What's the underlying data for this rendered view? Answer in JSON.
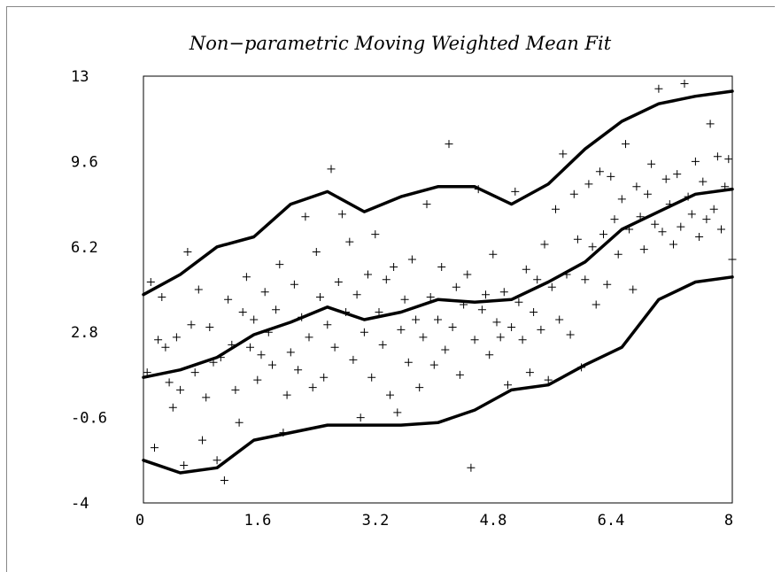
{
  "chart_data": {
    "type": "scatter",
    "title": "Non−parametric Moving Weighted Mean Fit",
    "xlabel": "",
    "ylabel": "",
    "xlim": [
      0,
      8
    ],
    "ylim": [
      -4,
      13
    ],
    "x_ticks": [
      "0",
      "1.6",
      "3.2",
      "4.8",
      "6.4",
      "8"
    ],
    "y_ticks": [
      "13",
      "9.6",
      "6.2",
      "2.8",
      "-0.6",
      "-4"
    ],
    "x_tick_values": [
      0,
      1.6,
      3.2,
      4.8,
      6.4,
      8
    ],
    "y_tick_values": [
      13,
      9.6,
      6.2,
      2.8,
      -0.6,
      -4
    ],
    "grid": false,
    "colors": {
      "line": "#000000",
      "marker": "#000000",
      "background": "#ffffff"
    },
    "marker": "plus",
    "points": [
      [
        0.05,
        1.2
      ],
      [
        0.1,
        4.8
      ],
      [
        0.15,
        -1.8
      ],
      [
        0.2,
        2.5
      ],
      [
        0.25,
        4.2
      ],
      [
        0.3,
        2.2
      ],
      [
        0.35,
        0.8
      ],
      [
        0.4,
        -0.2
      ],
      [
        0.45,
        2.6
      ],
      [
        0.5,
        0.5
      ],
      [
        0.55,
        -2.5
      ],
      [
        0.6,
        6.0
      ],
      [
        0.65,
        3.1
      ],
      [
        0.7,
        1.2
      ],
      [
        0.75,
        4.5
      ],
      [
        0.8,
        -1.5
      ],
      [
        0.85,
        0.2
      ],
      [
        0.9,
        3.0
      ],
      [
        0.95,
        1.6
      ],
      [
        1.0,
        -2.3
      ],
      [
        1.05,
        1.8
      ],
      [
        1.1,
        -3.1
      ],
      [
        1.15,
        4.1
      ],
      [
        1.2,
        2.3
      ],
      [
        1.25,
        0.5
      ],
      [
        1.3,
        -0.8
      ],
      [
        1.35,
        3.6
      ],
      [
        1.4,
        5.0
      ],
      [
        1.45,
        2.2
      ],
      [
        1.5,
        3.3
      ],
      [
        1.55,
        0.9
      ],
      [
        1.6,
        1.9
      ],
      [
        1.65,
        4.4
      ],
      [
        1.7,
        2.8
      ],
      [
        1.75,
        1.5
      ],
      [
        1.8,
        3.7
      ],
      [
        1.85,
        5.5
      ],
      [
        1.9,
        -1.2
      ],
      [
        1.95,
        0.3
      ],
      [
        2.0,
        2.0
      ],
      [
        2.05,
        4.7
      ],
      [
        2.1,
        1.3
      ],
      [
        2.15,
        3.4
      ],
      [
        2.2,
        7.4
      ],
      [
        2.25,
        2.6
      ],
      [
        2.3,
        0.6
      ],
      [
        2.35,
        6.0
      ],
      [
        2.4,
        4.2
      ],
      [
        2.45,
        1.0
      ],
      [
        2.5,
        3.1
      ],
      [
        2.55,
        9.3
      ],
      [
        2.6,
        2.2
      ],
      [
        2.65,
        4.8
      ],
      [
        2.7,
        7.5
      ],
      [
        2.75,
        3.6
      ],
      [
        2.8,
        6.4
      ],
      [
        2.85,
        1.7
      ],
      [
        2.9,
        4.3
      ],
      [
        2.95,
        -0.6
      ],
      [
        3.0,
        2.8
      ],
      [
        3.05,
        5.1
      ],
      [
        3.1,
        1.0
      ],
      [
        3.15,
        6.7
      ],
      [
        3.2,
        3.6
      ],
      [
        3.25,
        2.3
      ],
      [
        3.3,
        4.9
      ],
      [
        3.35,
        0.3
      ],
      [
        3.4,
        5.4
      ],
      [
        3.45,
        -0.4
      ],
      [
        3.5,
        2.9
      ],
      [
        3.55,
        4.1
      ],
      [
        3.6,
        1.6
      ],
      [
        3.65,
        5.7
      ],
      [
        3.7,
        3.3
      ],
      [
        3.75,
        0.6
      ],
      [
        3.8,
        2.6
      ],
      [
        3.85,
        7.9
      ],
      [
        3.9,
        4.2
      ],
      [
        3.95,
        1.5
      ],
      [
        4.0,
        3.3
      ],
      [
        4.05,
        5.4
      ],
      [
        4.1,
        2.1
      ],
      [
        4.15,
        10.3
      ],
      [
        4.2,
        3.0
      ],
      [
        4.25,
        4.6
      ],
      [
        4.3,
        1.1
      ],
      [
        4.35,
        3.9
      ],
      [
        4.4,
        5.1
      ],
      [
        4.45,
        -2.6
      ],
      [
        4.5,
        2.5
      ],
      [
        4.55,
        8.5
      ],
      [
        4.6,
        3.7
      ],
      [
        4.65,
        4.3
      ],
      [
        4.7,
        1.9
      ],
      [
        4.75,
        5.9
      ],
      [
        4.8,
        3.2
      ],
      [
        4.85,
        2.6
      ],
      [
        4.9,
        4.4
      ],
      [
        4.95,
        0.7
      ],
      [
        5.0,
        3.0
      ],
      [
        5.05,
        8.4
      ],
      [
        5.1,
        4.0
      ],
      [
        5.15,
        2.5
      ],
      [
        5.2,
        5.3
      ],
      [
        5.25,
        1.2
      ],
      [
        5.3,
        3.6
      ],
      [
        5.35,
        4.9
      ],
      [
        5.4,
        2.9
      ],
      [
        5.45,
        6.3
      ],
      [
        5.5,
        0.9
      ],
      [
        5.55,
        4.6
      ],
      [
        5.6,
        7.7
      ],
      [
        5.65,
        3.3
      ],
      [
        5.7,
        9.9
      ],
      [
        5.75,
        5.1
      ],
      [
        5.8,
        2.7
      ],
      [
        5.85,
        8.3
      ],
      [
        5.9,
        6.5
      ],
      [
        5.95,
        1.4
      ],
      [
        6.0,
        4.9
      ],
      [
        6.05,
        8.7
      ],
      [
        6.1,
        6.2
      ],
      [
        6.15,
        3.9
      ],
      [
        6.2,
        9.2
      ],
      [
        6.25,
        6.7
      ],
      [
        6.3,
        4.7
      ],
      [
        6.35,
        9.0
      ],
      [
        6.4,
        7.3
      ],
      [
        6.45,
        5.9
      ],
      [
        6.5,
        8.1
      ],
      [
        6.55,
        10.3
      ],
      [
        6.6,
        6.9
      ],
      [
        6.65,
        4.5
      ],
      [
        6.7,
        8.6
      ],
      [
        6.75,
        7.4
      ],
      [
        6.8,
        6.1
      ],
      [
        6.85,
        8.3
      ],
      [
        6.9,
        9.5
      ],
      [
        6.95,
        7.1
      ],
      [
        7.0,
        12.5
      ],
      [
        7.05,
        6.8
      ],
      [
        7.1,
        8.9
      ],
      [
        7.15,
        7.9
      ],
      [
        7.2,
        6.3
      ],
      [
        7.25,
        9.1
      ],
      [
        7.3,
        7.0
      ],
      [
        7.35,
        12.7
      ],
      [
        7.4,
        8.2
      ],
      [
        7.45,
        7.5
      ],
      [
        7.5,
        9.6
      ],
      [
        7.55,
        6.6
      ],
      [
        7.6,
        8.8
      ],
      [
        7.65,
        7.3
      ],
      [
        7.7,
        11.1
      ],
      [
        7.75,
        7.7
      ],
      [
        7.8,
        9.8
      ],
      [
        7.85,
        6.9
      ],
      [
        7.9,
        8.6
      ],
      [
        7.95,
        9.7
      ],
      [
        8.0,
        5.7
      ]
    ],
    "series": [
      {
        "values": [
          [
            0,
            1.0
          ],
          [
            0.5,
            1.3
          ],
          [
            1.0,
            1.8
          ],
          [
            1.5,
            2.7
          ],
          [
            2.0,
            3.2
          ],
          [
            2.5,
            3.8
          ],
          [
            3.0,
            3.3
          ],
          [
            3.5,
            3.6
          ],
          [
            4.0,
            4.1
          ],
          [
            4.5,
            4.0
          ],
          [
            5.0,
            4.1
          ],
          [
            5.5,
            4.8
          ],
          [
            6.0,
            5.6
          ],
          [
            6.5,
            6.9
          ],
          [
            7.0,
            7.6
          ],
          [
            7.5,
            8.3
          ],
          [
            8.0,
            8.5
          ]
        ]
      },
      {
        "values": [
          [
            0,
            4.3
          ],
          [
            0.5,
            5.1
          ],
          [
            1.0,
            6.2
          ],
          [
            1.5,
            6.6
          ],
          [
            2.0,
            7.9
          ],
          [
            2.5,
            8.4
          ],
          [
            3.0,
            7.6
          ],
          [
            3.5,
            8.2
          ],
          [
            4.0,
            8.6
          ],
          [
            4.5,
            8.6
          ],
          [
            5.0,
            7.9
          ],
          [
            5.5,
            8.7
          ],
          [
            6.0,
            10.1
          ],
          [
            6.5,
            11.2
          ],
          [
            7.0,
            11.9
          ],
          [
            7.5,
            12.2
          ],
          [
            8.0,
            12.4
          ]
        ]
      },
      {
        "values": [
          [
            0,
            -2.3
          ],
          [
            0.5,
            -2.8
          ],
          [
            1.0,
            -2.6
          ],
          [
            1.5,
            -1.5
          ],
          [
            2.0,
            -1.2
          ],
          [
            2.5,
            -0.9
          ],
          [
            3.0,
            -0.9
          ],
          [
            3.5,
            -0.9
          ],
          [
            4.0,
            -0.8
          ],
          [
            4.5,
            -0.3
          ],
          [
            5.0,
            0.5
          ],
          [
            5.5,
            0.7
          ],
          [
            6.0,
            1.5
          ],
          [
            6.5,
            2.2
          ],
          [
            7.0,
            4.1
          ],
          [
            7.5,
            4.8
          ],
          [
            8.0,
            5.0
          ]
        ]
      }
    ]
  }
}
